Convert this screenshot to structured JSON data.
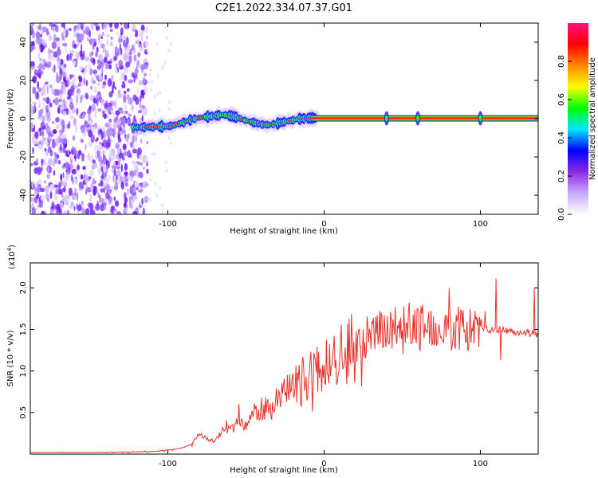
{
  "title": "C2E1.2022.334.07.37.G01",
  "chart_data": [
    {
      "type": "heatmap",
      "xlabel": "Height of straight line (km)",
      "ylabel": "Frequency (Hz)",
      "xlim": [
        -188,
        137
      ],
      "ylim": [
        -50,
        50
      ],
      "xticks": [
        -100,
        0,
        100
      ],
      "yticks": [
        -40,
        -20,
        0,
        20,
        40
      ],
      "colorbar": {
        "label": "Normalized spectral amplitude",
        "range": [
          0.0,
          1.0
        ],
        "ticks": [
          "0.0",
          "0.2",
          "0.4",
          "0.6",
          "0.8"
        ],
        "colors": [
          "#ffffff",
          "#c9a6ff",
          "#8a2be2",
          "#0000ff",
          "#00e5ff",
          "#00ff00",
          "#ffff00",
          "#ff8800",
          "#ff0000",
          "#ff1080"
        ]
      },
      "noise_region_x": [
        -188,
        -113
      ],
      "doppler_track": {
        "x": [
          -120,
          -110,
          -100,
          -95,
          -90,
          -85,
          -80,
          -75,
          -70,
          -65,
          -60,
          -55,
          -50,
          -45,
          -40,
          -35,
          -30,
          -25,
          -20,
          -15,
          -10,
          -5,
          0,
          10,
          20,
          40,
          60,
          80,
          100,
          120,
          137
        ],
        "frequency": [
          -4.5,
          -4.3,
          -4.0,
          -3.2,
          -2.0,
          -0.5,
          0.5,
          1.0,
          1.5,
          2.0,
          1.6,
          0.5,
          -1.0,
          -2.0,
          -3.0,
          -3.2,
          -2.5,
          -1.5,
          -0.8,
          0.0,
          0.3,
          0.4,
          0.3,
          0.2,
          0.2,
          0.2,
          0.2,
          0.2,
          0.2,
          0.2,
          0.2
        ]
      }
    },
    {
      "type": "line",
      "xlabel": "Height of straight line (km)",
      "ylabel": "SNR (10 * v/v)",
      "y_exponent": "(x10",
      "y_exponent_power": "4",
      "xlim": [
        -188,
        137
      ],
      "ylim": [
        0,
        2.3
      ],
      "xticks": [
        -100,
        0,
        100
      ],
      "yticks": [
        0.5,
        1.0,
        1.5,
        2.0
      ],
      "ytick_labels": [
        "0.5",
        "1.0",
        "1.5",
        "2.0"
      ],
      "series": [
        {
          "color": "#e8302a",
          "x": [
            -188,
            -150,
            -110,
            -100,
            -95,
            -90,
            -85,
            -82,
            -80,
            -75,
            -70,
            -65,
            -60,
            -55,
            -50,
            -45,
            -40,
            -35,
            -30,
            -25,
            -20,
            -15,
            -10,
            -5,
            0,
            10,
            20,
            30,
            40,
            50,
            60,
            70,
            80,
            90,
            100,
            110,
            120,
            130,
            137
          ],
          "values": [
            0.02,
            0.02,
            0.03,
            0.05,
            0.06,
            0.08,
            0.12,
            0.2,
            0.25,
            0.18,
            0.15,
            0.28,
            0.3,
            0.38,
            0.35,
            0.45,
            0.55,
            0.52,
            0.62,
            0.7,
            0.78,
            0.85,
            0.95,
            0.98,
            1.05,
            1.2,
            1.3,
            1.42,
            1.5,
            1.55,
            1.55,
            1.55,
            1.52,
            1.5,
            1.5,
            1.5,
            1.48,
            1.46,
            1.44
          ]
        }
      ]
    }
  ]
}
